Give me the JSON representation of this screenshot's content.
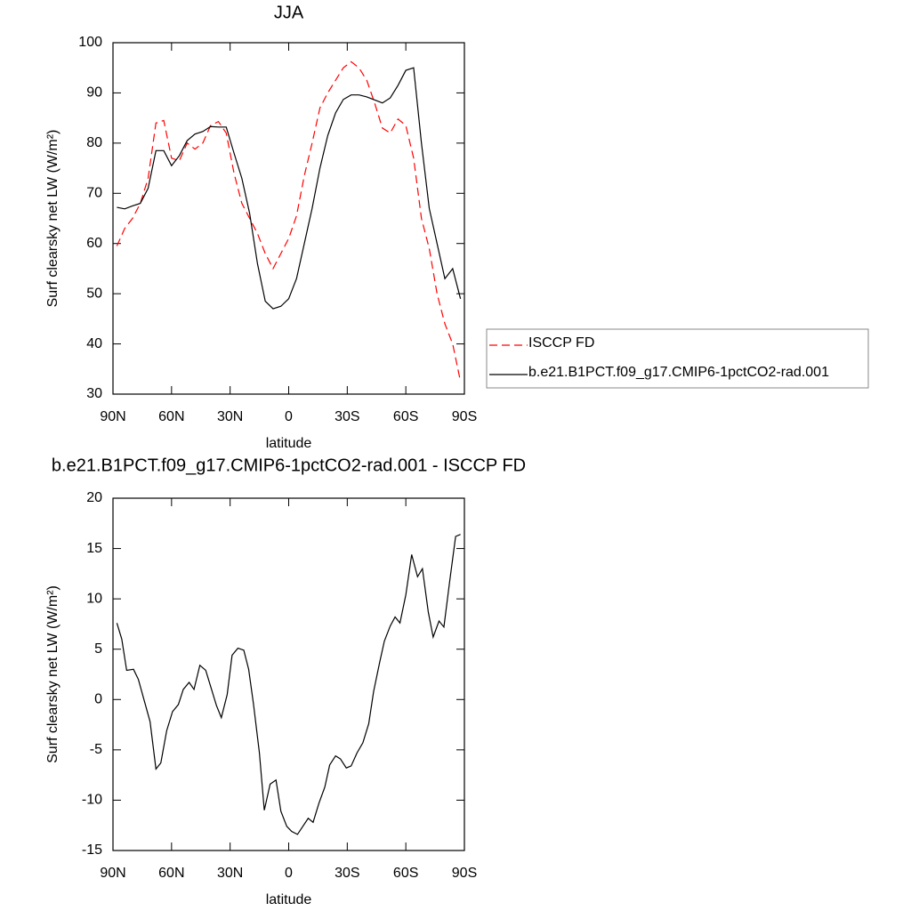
{
  "chart_data": [
    {
      "type": "line",
      "title": "JJA",
      "x_label": "latitude",
      "y_label": "Surf clearsky net LW (W/m²)",
      "x": [
        88,
        84,
        80,
        76,
        72,
        68,
        64,
        60,
        56,
        52,
        48,
        44,
        40,
        36,
        32,
        28,
        24,
        20,
        16,
        12,
        8,
        4,
        0,
        -4,
        -8,
        -12,
        -16,
        -20,
        -24,
        -28,
        -32,
        -36,
        -40,
        -44,
        -48,
        -52,
        -56,
        -60,
        -64,
        -68,
        -72,
        -76,
        -80,
        -84,
        -88
      ],
      "series": [
        {
          "name": "ISCCP FD",
          "color": "#ff0000",
          "dashed": true,
          "values": [
            59.5,
            63,
            65,
            68,
            73,
            84,
            84.5,
            77,
            76.5,
            80,
            78.8,
            80,
            83.5,
            84.3,
            82,
            74,
            68,
            65,
            62,
            58,
            55,
            58,
            61,
            65.5,
            73.5,
            80,
            87,
            90,
            92.5,
            95,
            96.2,
            95,
            92.5,
            88,
            83,
            82,
            84.8,
            83.5,
            77,
            65,
            59,
            50,
            44,
            40,
            32.5
          ]
        },
        {
          "name": "b.e21.B1PCT.f09_g17.CMIP6-1pctCO2-rad.001",
          "color": "#000000",
          "dashed": false,
          "values": [
            67.2,
            66.9,
            67.5,
            68,
            71,
            78.5,
            78.5,
            75.5,
            77.5,
            80.5,
            81.8,
            82.3,
            83.3,
            83.2,
            83.2,
            78,
            73,
            66,
            56,
            48.5,
            47,
            47.5,
            49,
            53,
            60,
            67,
            75,
            81.5,
            86,
            88.7,
            89.6,
            89.6,
            89.2,
            88.6,
            88,
            89,
            91.5,
            94.5,
            95,
            80,
            67,
            60,
            53,
            55,
            49
          ]
        }
      ],
      "xlim": [
        90,
        -90
      ],
      "xticks": [
        {
          "value": 90,
          "label": "90N"
        },
        {
          "value": 60,
          "label": "60N"
        },
        {
          "value": 30,
          "label": "30N"
        },
        0,
        {
          "value": -30,
          "label": "30S"
        },
        {
          "value": -60,
          "label": "60S"
        },
        {
          "value": -90,
          "label": "90S"
        }
      ],
      "ylim": [
        30,
        100
      ],
      "yticks": [
        30,
        40,
        50,
        60,
        70,
        80,
        90,
        100
      ],
      "legend": "right"
    },
    {
      "type": "line",
      "title": "b.e21.B1PCT.f09_g17.CMIP6-1pctCO2-rad.001 - ISCCP FD",
      "x_label": "latitude",
      "y_label": "Surf clearsky net LW (W/m²)",
      "x": [
        88,
        85.5,
        83,
        79.5,
        77,
        71,
        68,
        65.5,
        62.5,
        59.5,
        56.5,
        54,
        51,
        48.5,
        45.5,
        42.5,
        37,
        34.5,
        31.5,
        29,
        26,
        23,
        20.5,
        18,
        15,
        12.5,
        9.5,
        6.5,
        4,
        1,
        -1.5,
        -4.5,
        -10,
        -12.5,
        -15.5,
        -18.5,
        -21,
        -24,
        -26.5,
        -29.5,
        -32,
        -35,
        -38,
        -41,
        -43.5,
        -46.5,
        -49,
        -52,
        -54.5,
        -57,
        -60,
        -63,
        -66,
        -68.5,
        -71.5,
        -74,
        -77,
        -79.5,
        -82.5,
        -85.5,
        -88
      ],
      "series": [
        {
          "color": "#000000",
          "dashed": false,
          "values": [
            7.6,
            6,
            2.9,
            3,
            2,
            -2.2,
            -6.9,
            -6.3,
            -3.1,
            -1.2,
            -0.5,
            1,
            1.7,
            1,
            3.4,
            2.9,
            -0.6,
            -1.8,
            0.5,
            4.4,
            5.1,
            4.9,
            3,
            -0.5,
            -5.3,
            -11,
            -8.4,
            -8,
            -11.1,
            -12.6,
            -13.1,
            -13.4,
            -11.8,
            -12.2,
            -10.3,
            -8.7,
            -6.5,
            -5.6,
            -5.9,
            -6.8,
            -6.6,
            -5.3,
            -4.3,
            -2.4,
            0.8,
            3.6,
            5.8,
            7.3,
            8.2,
            7.6,
            10.4,
            14.4,
            12.2,
            13,
            8.7,
            6.2,
            7.8,
            7.2,
            11.8,
            16.2,
            16.4
          ]
        }
      ],
      "xlim": [
        90,
        -90
      ],
      "xticks": [
        {
          "value": 90,
          "label": "90N"
        },
        {
          "value": 60,
          "label": "60N"
        },
        {
          "value": 30,
          "label": "30N"
        },
        0,
        {
          "value": -30,
          "label": "30S"
        },
        {
          "value": -60,
          "label": "60S"
        },
        {
          "value": -90,
          "label": "90S"
        }
      ],
      "ylim": [
        -15,
        20
      ],
      "yticks": [
        -15,
        -10,
        -5,
        0,
        5,
        10,
        15,
        20
      ]
    }
  ]
}
